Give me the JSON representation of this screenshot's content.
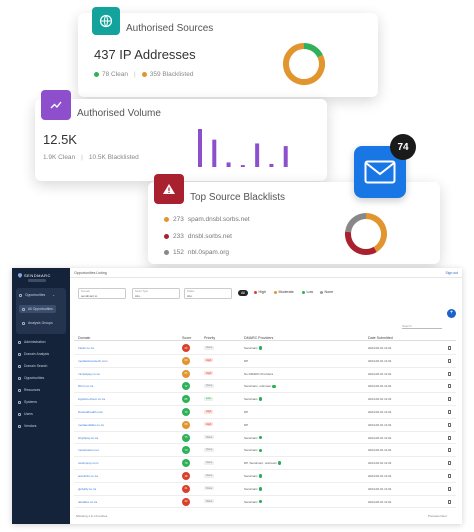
{
  "sources_card": {
    "title": "Authorised Sources",
    "value": "437 IP Addresses",
    "clean": "78 Clean",
    "blacklisted": "359 Blacklisted",
    "clean_color": "#2fb15a",
    "blacklisted_color": "#e2952f",
    "icon": "globe-icon"
  },
  "volume_card": {
    "title": "Authorised Volume",
    "value": "12.5K",
    "clean": "1.9K Clean",
    "blacklisted": "10.5K Blacklisted",
    "bar_color": "#8d4fcc",
    "icon": "trend-icon"
  },
  "blacklists_card": {
    "title": "Top Source Blacklists",
    "icon": "warning-icon",
    "rows": [
      {
        "count": "273",
        "name": "spam.dnsbl.sorbs.net",
        "color": "#e2952f"
      },
      {
        "count": "233",
        "name": "dnsbl.sorbs.net",
        "color": "#a9202f"
      },
      {
        "count": "152",
        "name": "nbl.0spam.org",
        "color": "#888888"
      }
    ]
  },
  "mail_badge": {
    "count": "74",
    "icon": "mail-icon",
    "color": "#1877e5"
  },
  "app": {
    "brand": "SENDMARC",
    "page_title": "Opportunities Listing",
    "top_link": "Sign out",
    "sidebar": {
      "group": "Opportunities",
      "sub_active": "All Opportunities",
      "sub_other": "Analysis Groups",
      "items": [
        "Administration",
        "Domain Analysis",
        "Domain Search",
        "Opportunities",
        "Resources",
        "Systems",
        "Users",
        "Vendors"
      ]
    },
    "filters": {
      "f1_label": "Domain",
      "f1_value": "sendmarc.io",
      "f2_label": "Score Type",
      "f2_value": "ALL",
      "f3_label": "Status",
      "f3_value": "ALL",
      "chips": [
        "All",
        "High",
        "Moderate",
        "Low",
        "None"
      ]
    },
    "search_placeholder": "Search",
    "columns": [
      "Domain",
      "Score",
      "Priority",
      "DMARC Providers",
      "Date Submitted"
    ],
    "rows": [
      {
        "domain": "Intelix.co.za",
        "score": "25",
        "priority": "None",
        "provider": "Sendmarc",
        "date": "2024-06-01 11:01"
      },
      {
        "domain": "mediastreamtech.com",
        "score": "60",
        "priority": "High",
        "provider": "DP",
        "date": "2024-06-01 11:01"
      },
      {
        "domain": "mintedpay.co.za",
        "score": "65",
        "priority": "High",
        "provider": "No DMARC Providers",
        "date": "2024-06-01 11:01"
      },
      {
        "domain": "bbcm.co.za",
        "score": "72",
        "priority": "None",
        "provider": "Sendmarc, unknown",
        "date": "2024-06-01 11:01"
      },
      {
        "domain": "logistics-direct.co.za",
        "score": "85",
        "priority": "Low",
        "provider": "Sendmarc",
        "date": "2024-06-01 11:01"
      },
      {
        "domain": "biostrakhealth.com",
        "score": "72",
        "priority": "High",
        "provider": "DP",
        "date": "2024-06-01 11:01"
      },
      {
        "domain": "mediaentlabs.co.za",
        "score": "68",
        "priority": "High",
        "provider": "DP",
        "date": "2024-06-01 11:01"
      },
      {
        "domain": "brightpay.co.za",
        "score": "75",
        "priority": "None",
        "provider": "Sendmarc",
        "date": "2024-06-01 11:01"
      },
      {
        "domain": "mosdreams.net",
        "score": "70",
        "priority": "None",
        "provider": "Sendmarc",
        "date": "2024-06-01 11:01"
      },
      {
        "domain": "vestinprop.com",
        "score": "79",
        "priority": "None",
        "provider": "DP, Sendmarc, unknown",
        "date": "2024-06-01 11:01"
      },
      {
        "domain": "autofinlix.co.za",
        "score": "48",
        "priority": "None",
        "provider": "Sendmarc",
        "date": "2024-06-01 11:01"
      },
      {
        "domain": "globalfy.co.za",
        "score": "21",
        "priority": "None",
        "provider": "Sendmarc",
        "date": "2024-06-01 11:01"
      },
      {
        "domain": "dekaflex.co.za",
        "score": "20",
        "priority": "None",
        "provider": "Sendmarc",
        "date": "2024-06-01 11:01"
      }
    ],
    "footer_left": "Showing 1 to 13 entries",
    "footer_right": "Previous  Next"
  },
  "chart_data": [
    {
      "type": "pie",
      "name": "sources_donut",
      "labels": [
        "Clean",
        "Blacklisted"
      ],
      "values": [
        78,
        359
      ],
      "colors": [
        "#2fb15a",
        "#e2952f"
      ]
    },
    {
      "type": "bar",
      "name": "volume_bars",
      "values": [
        1.0,
        0.72,
        0.12,
        0.05,
        0.62,
        0.08,
        0.55
      ],
      "ylim": [
        0,
        1
      ]
    },
    {
      "type": "pie",
      "name": "blacklist_donut",
      "labels": [
        "spam.dnsbl.sorbs.net",
        "dnsbl.sorbs.net",
        "nbl.0spam.org"
      ],
      "values": [
        273,
        233,
        152
      ],
      "colors": [
        "#e2952f",
        "#a9202f",
        "#888888"
      ]
    }
  ]
}
